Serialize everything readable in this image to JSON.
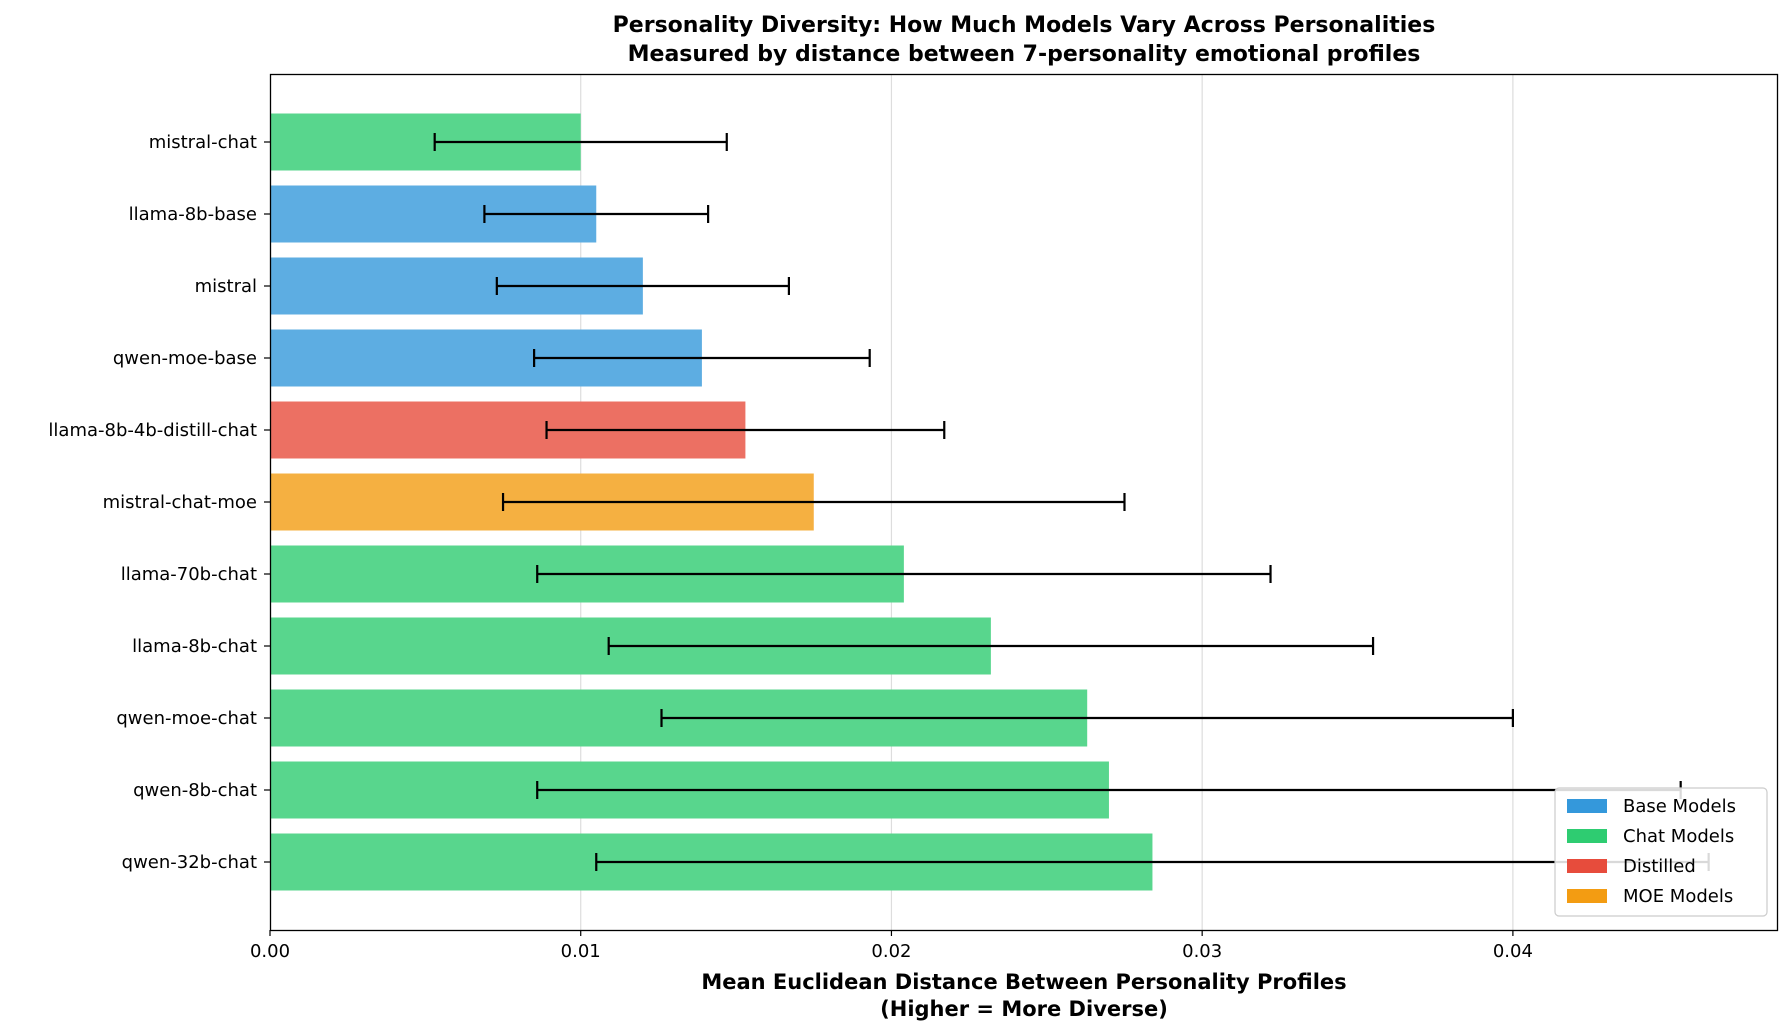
{
  "chart_data": {
    "type": "bar",
    "orientation": "horizontal",
    "title": "Personality Diversity: How Much Models Vary Across Personalities",
    "subtitle": "Measured by distance between 7-personality emotional profiles",
    "xlabel": "Mean Euclidean Distance Between Personality Profiles",
    "xlabel_note": "(Higher = More Diverse)",
    "ylabel": "",
    "xlim": [
      0,
      0.0485
    ],
    "xticks": [
      0.0,
      0.01,
      0.02,
      0.03,
      0.04
    ],
    "xtick_labels": [
      "0.00",
      "0.01",
      "0.02",
      "0.03",
      "0.04"
    ],
    "grid": "x",
    "legend_position": "bottom-right",
    "legend": [
      {
        "label": "Base Models",
        "category": "base",
        "color": "#3498db"
      },
      {
        "label": "Chat Models",
        "category": "chat",
        "color": "#2ecc71"
      },
      {
        "label": "Distilled",
        "category": "distilled",
        "color": "#e74c3c"
      },
      {
        "label": "MOE Models",
        "category": "moe",
        "color": "#f39c12"
      }
    ],
    "bars": [
      {
        "label": "mistral-chat",
        "value": 0.01,
        "error": 0.0047,
        "category": "chat"
      },
      {
        "label": "llama-8b-base",
        "value": 0.0105,
        "error": 0.0036,
        "category": "base"
      },
      {
        "label": "mistral",
        "value": 0.012,
        "error": 0.0047,
        "category": "base"
      },
      {
        "label": "qwen-moe-base",
        "value": 0.0139,
        "error": 0.0054,
        "category": "base"
      },
      {
        "label": "llama-8b-4b-distill-chat",
        "value": 0.0153,
        "error": 0.0064,
        "category": "distilled"
      },
      {
        "label": "mistral-chat-moe",
        "value": 0.0175,
        "error": 0.01,
        "category": "moe"
      },
      {
        "label": "llama-70b-chat",
        "value": 0.0204,
        "error": 0.0118,
        "category": "chat"
      },
      {
        "label": "llama-8b-chat",
        "value": 0.0232,
        "error": 0.0123,
        "category": "chat"
      },
      {
        "label": "qwen-moe-chat",
        "value": 0.0263,
        "error": 0.0137,
        "category": "chat"
      },
      {
        "label": "qwen-8b-chat",
        "value": 0.027,
        "error": 0.0184,
        "category": "chat"
      },
      {
        "label": "qwen-32b-chat",
        "value": 0.0284,
        "error": 0.0179,
        "category": "chat"
      }
    ]
  }
}
